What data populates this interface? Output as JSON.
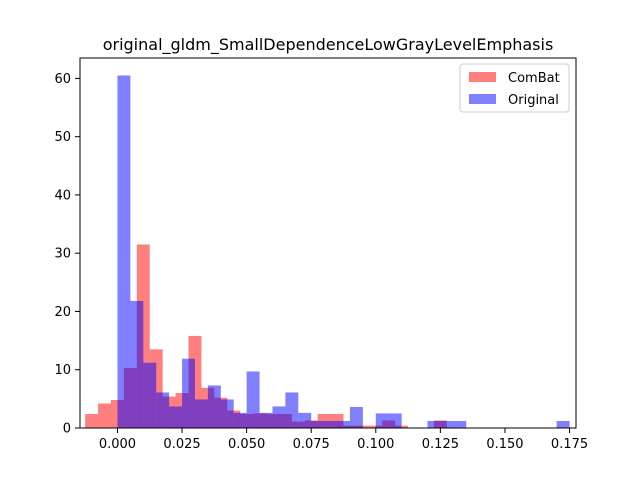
{
  "chart_data": {
    "type": "bar",
    "title": "original_gldm_SmallDependenceLowGrayLevelEmphasis",
    "xlabel": "",
    "ylabel": "",
    "xlim": [
      -0.0145,
      0.1775
    ],
    "ylim": [
      0,
      63.5
    ],
    "xticks": [
      0.0,
      0.025,
      0.05,
      0.075,
      0.1,
      0.125,
      0.15,
      0.175
    ],
    "xtick_labels": [
      "0.000",
      "0.025",
      "0.050",
      "0.075",
      "0.100",
      "0.125",
      "0.150",
      "0.175"
    ],
    "yticks": [
      0,
      10,
      20,
      30,
      40,
      50,
      60
    ],
    "ytick_labels": [
      "0",
      "10",
      "20",
      "30",
      "40",
      "50",
      "60"
    ],
    "grid": false,
    "legend_position": "top-right",
    "series": [
      {
        "name": "ComBat",
        "color": "#ff0000",
        "alpha": 0.5,
        "bin_start": -0.0125,
        "bin_width": 0.005,
        "values": [
          2.4,
          4.2,
          4.8,
          10.3,
          31.5,
          13.5,
          5.4,
          6.0,
          15.8,
          6.9,
          5.2,
          3.0,
          2.4,
          2.5,
          2.4,
          2.4,
          1.1,
          1.3,
          2.4,
          2.4,
          0.4,
          0.4,
          0.4,
          1.3,
          0.4,
          0.0,
          0.0,
          1.3,
          0.0,
          0.0
        ]
      },
      {
        "name": "Original",
        "color": "#0000ff",
        "alpha": 0.5,
        "bin_start": 0.0,
        "bin_width": 0.005,
        "values": [
          60.5,
          21.8,
          11.2,
          6.1,
          3.7,
          11.9,
          4.9,
          7.3,
          4.9,
          2.6,
          9.7,
          2.6,
          3.7,
          6.1,
          2.6,
          1.2,
          1.2,
          1.2,
          3.6,
          0.0,
          2.5,
          2.5,
          0.0,
          0.0,
          1.2,
          1.2,
          1.2,
          0.0,
          0.0,
          0.0,
          0.0,
          0.0,
          0.0,
          0.0,
          1.2
        ]
      }
    ]
  }
}
